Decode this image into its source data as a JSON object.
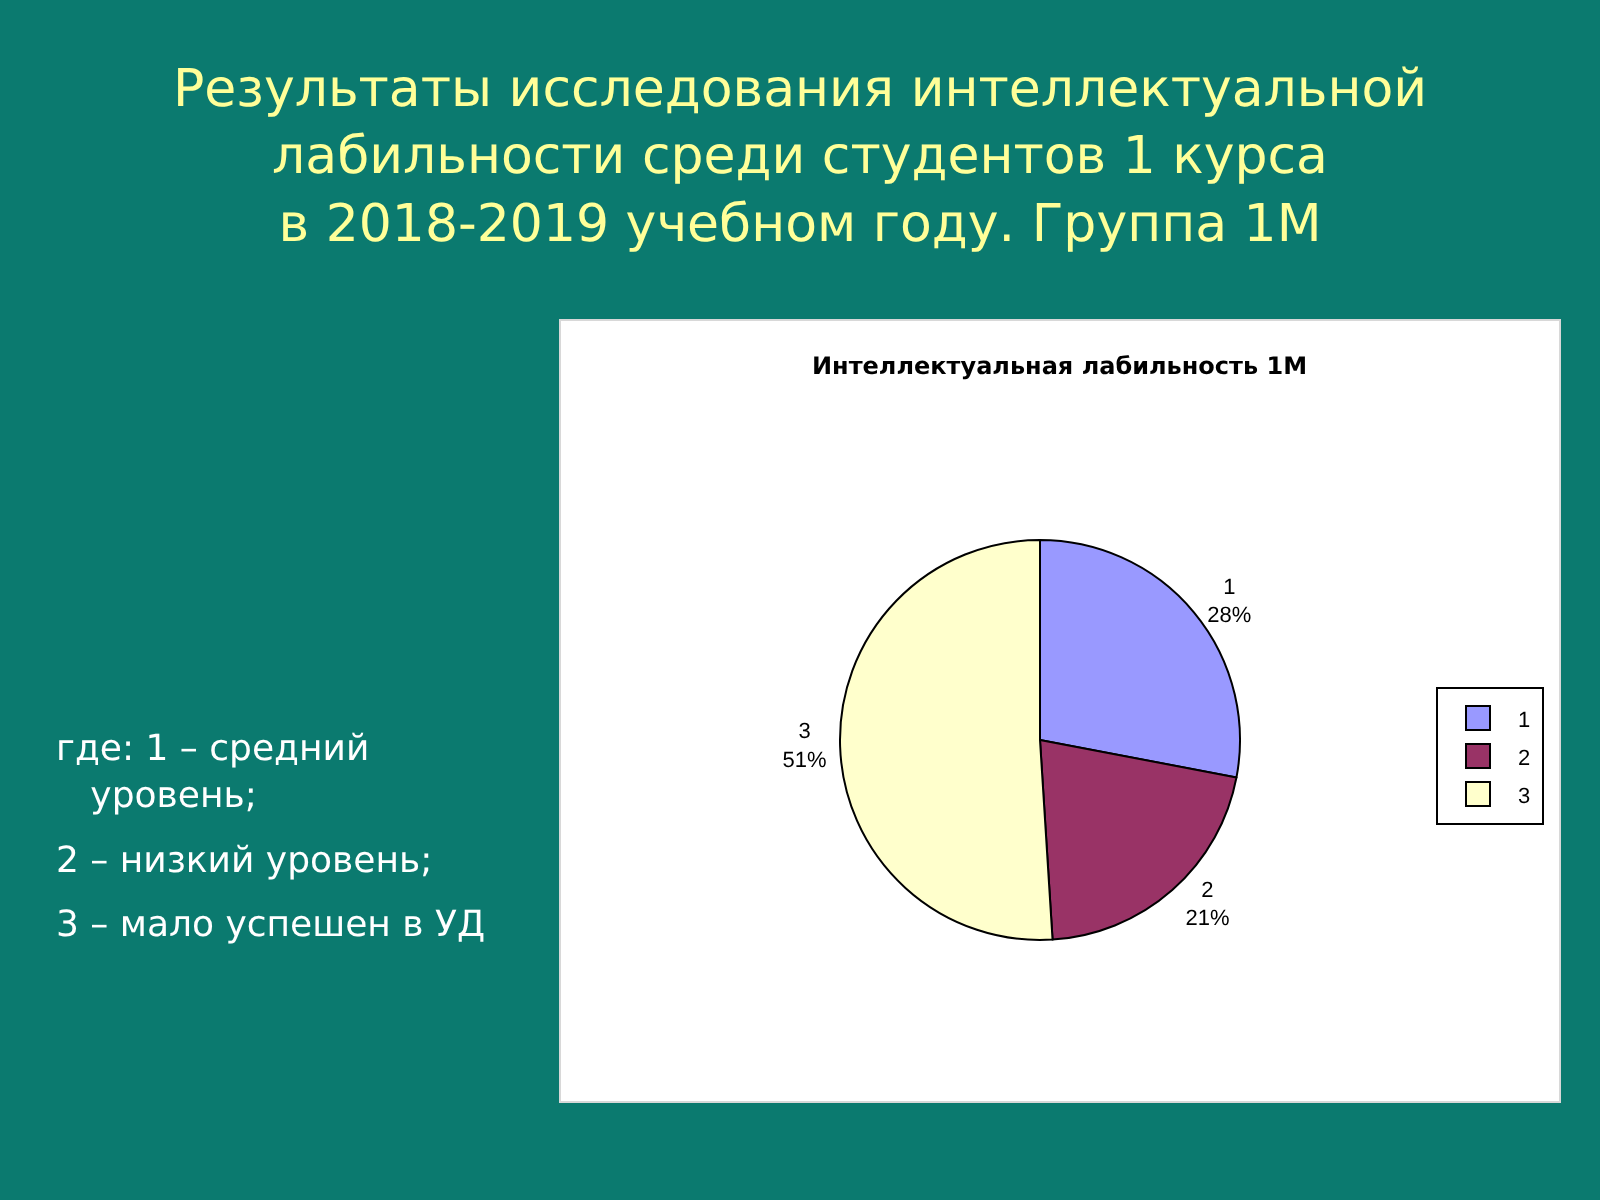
{
  "chart_data": {
    "type": "pie",
    "title": "Результаты исследования интеллектуальной\nлабильности среди студентов 1 курса\nв 2018-2019 учебном году. Группа 1М",
    "subtitle": "Интеллектуальная лабильность 1М",
    "annotations": [
      "где: 1 – средний уровень;",
      "2 – низкий уровень;",
      "3 – мало успешен в УД"
    ],
    "categories": [
      "1",
      "2",
      "3"
    ],
    "values": [
      28,
      21,
      51
    ],
    "value_labels": [
      "28%",
      "21%",
      "51%"
    ],
    "colors": [
      "#9999ff",
      "#993366",
      "#ffffcc"
    ],
    "legend": "right"
  }
}
